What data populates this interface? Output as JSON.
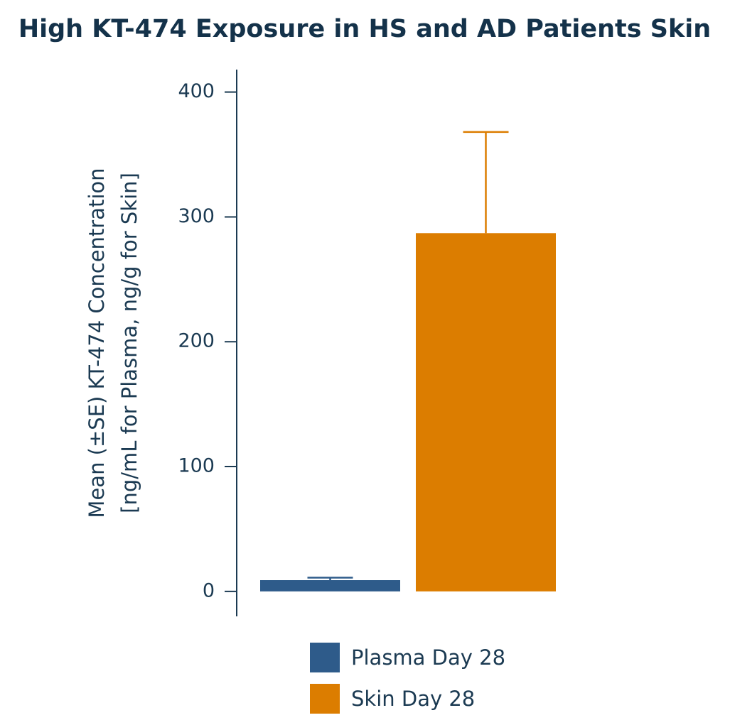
{
  "chart_data": {
    "type": "bar",
    "title": "High KT-474 Exposure in HS and AD Patients Skin",
    "ylabel": [
      "Mean (±SE) KT-474 Concentration",
      "[ng/mL for Plasma, ng/g for Skin]"
    ],
    "categories": [
      null
    ],
    "series": [
      {
        "name": "Plasma Day 28",
        "color": "#2e5b8a",
        "values": [
          9
        ],
        "errors": [
          2
        ]
      },
      {
        "name": "Skin Day 28",
        "color": "#dc7d00",
        "values": [
          287
        ],
        "errors": [
          81
        ]
      }
    ],
    "ylim": [
      -20,
      418
    ],
    "yticks": [
      0,
      100,
      200,
      300,
      400
    ]
  }
}
